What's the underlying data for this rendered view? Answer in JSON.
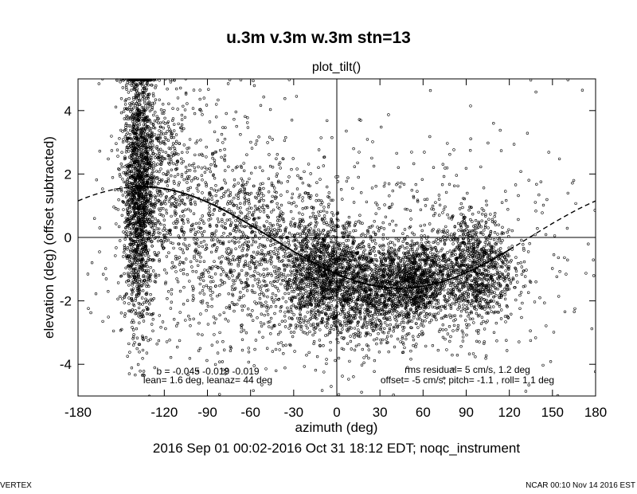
{
  "title": "u.3m v.3m w.3m stn=13",
  "subtitle": "plot_tilt()",
  "time_range": "2016 Sep 01 00:02-2016 Oct 31 18:12 EDT; noqc_instrument",
  "footer": {
    "left": "VERTEX",
    "right": "NCAR 00:10 Nov 14 2016 EST"
  },
  "annotations": {
    "b_coeffs": "b = -0.045 -0.019 -0.019",
    "lean": "lean= 1.6 deg, leanaz= 44 deg",
    "rms_residual": "rms residual= 5 cm/s, 1.2 deg",
    "offsets": "offset= -5 cm/s; pitch= -1.1 , roll=  1.1 deg"
  },
  "chart_data": {
    "type": "scatter",
    "xlabel": "azimuth (deg)",
    "ylabel": "elevation (deg)  (offset subtracted)",
    "xlim": [
      -180,
      180
    ],
    "ylim": [
      -5,
      5
    ],
    "xticks": [
      -180,
      -120,
      -90,
      -60,
      -30,
      0,
      30,
      60,
      90,
      120,
      150,
      180
    ],
    "yticks": [
      -4,
      -2,
      0,
      2,
      4
    ],
    "reference_lines": {
      "x": 0,
      "y": 0
    },
    "fit_curve": {
      "description": "tilt fit: elevation = 1.6*cos(azimuth - 44 - 180)",
      "amplitude_deg": 1.6,
      "phase_deg": 44,
      "solid_range": [
        -140,
        120
      ],
      "dashed_outside_range": true
    },
    "point_clusters": [
      {
        "x": -138,
        "y_mean": 1.5,
        "x_spread": 5,
        "y_spread": 2.2,
        "count": 1500
      },
      {
        "x": -128,
        "y_mean": 2.3,
        "x_spread": 12,
        "y_spread": 1.6,
        "count": 500
      },
      {
        "x": -95,
        "y_mean": 0.6,
        "x_spread": 25,
        "y_spread": 1.8,
        "count": 600
      },
      {
        "x": -50,
        "y_mean": -0.4,
        "x_spread": 18,
        "y_spread": 1.3,
        "count": 500
      },
      {
        "x": -10,
        "y_mean": -1.2,
        "x_spread": 14,
        "y_spread": 0.9,
        "count": 1200
      },
      {
        "x": 25,
        "y_mean": -1.6,
        "x_spread": 18,
        "y_spread": 0.8,
        "count": 1100
      },
      {
        "x": 55,
        "y_mean": -1.4,
        "x_spread": 10,
        "y_spread": 0.6,
        "count": 800
      },
      {
        "x": 95,
        "y_mean": -1.0,
        "x_spread": 14,
        "y_spread": 0.9,
        "count": 1100
      },
      {
        "x": 0,
        "y_mean": -0.8,
        "x_spread": 80,
        "y_spread": 2.0,
        "count": 900
      },
      {
        "x": 150,
        "y_mean": 1.0,
        "x_spread": 25,
        "y_spread": 2.5,
        "count": 40
      }
    ]
  }
}
